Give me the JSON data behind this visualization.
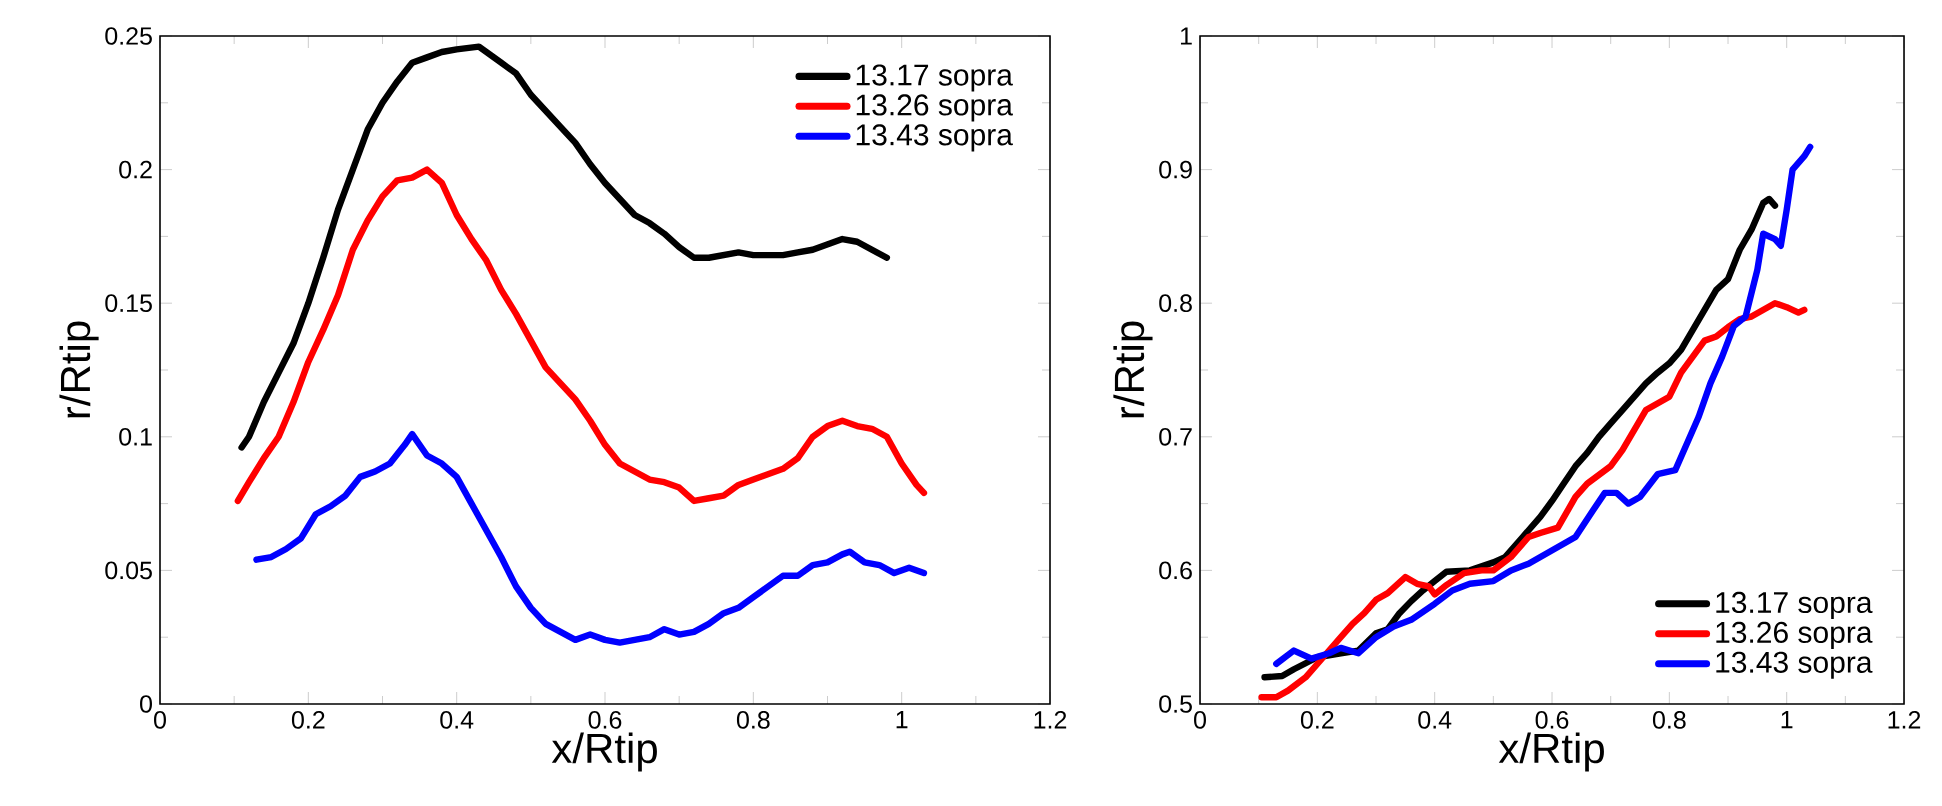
{
  "chart_data": [
    {
      "type": "line",
      "xlabel": "x/Rtip",
      "ylabel": "r/Rtip",
      "xlim": [
        0,
        1.2
      ],
      "ylim": [
        0,
        0.25
      ],
      "xticks": [
        0,
        0.2,
        0.4,
        0.6,
        0.8,
        1,
        1.2
      ],
      "yticks": [
        0,
        0.05,
        0.1,
        0.15,
        0.2,
        0.25
      ],
      "legend": "top right",
      "line_style": "solid",
      "marker": "none",
      "series": [
        {
          "name": "13.17 sopra",
          "color": "#000000",
          "x": [
            0.11,
            0.12,
            0.14,
            0.16,
            0.18,
            0.2,
            0.22,
            0.24,
            0.26,
            0.28,
            0.3,
            0.32,
            0.34,
            0.36,
            0.38,
            0.4,
            0.43,
            0.46,
            0.48,
            0.5,
            0.52,
            0.54,
            0.56,
            0.58,
            0.6,
            0.62,
            0.64,
            0.66,
            0.68,
            0.7,
            0.72,
            0.74,
            0.76,
            0.78,
            0.8,
            0.82,
            0.84,
            0.86,
            0.88,
            0.9,
            0.92,
            0.94,
            0.96,
            0.98
          ],
          "values": [
            0.096,
            0.1,
            0.113,
            0.124,
            0.135,
            0.15,
            0.167,
            0.185,
            0.2,
            0.215,
            0.225,
            0.233,
            0.24,
            0.242,
            0.244,
            0.245,
            0.246,
            0.24,
            0.236,
            0.228,
            0.222,
            0.216,
            0.21,
            0.202,
            0.195,
            0.189,
            0.183,
            0.18,
            0.176,
            0.171,
            0.167,
            0.167,
            0.168,
            0.169,
            0.168,
            0.168,
            0.168,
            0.169,
            0.17,
            0.172,
            0.174,
            0.173,
            0.17,
            0.167
          ]
        },
        {
          "name": "13.26 sopra",
          "color": "#ff0000",
          "x": [
            0.105,
            0.12,
            0.14,
            0.16,
            0.18,
            0.2,
            0.22,
            0.24,
            0.26,
            0.28,
            0.3,
            0.32,
            0.34,
            0.36,
            0.38,
            0.4,
            0.42,
            0.44,
            0.46,
            0.48,
            0.5,
            0.52,
            0.54,
            0.56,
            0.58,
            0.6,
            0.62,
            0.64,
            0.66,
            0.68,
            0.7,
            0.72,
            0.74,
            0.76,
            0.78,
            0.8,
            0.82,
            0.84,
            0.86,
            0.88,
            0.9,
            0.92,
            0.94,
            0.96,
            0.98,
            1.0,
            1.02,
            1.03
          ],
          "values": [
            0.076,
            0.083,
            0.092,
            0.1,
            0.113,
            0.128,
            0.14,
            0.153,
            0.17,
            0.181,
            0.19,
            0.196,
            0.197,
            0.2,
            0.195,
            0.183,
            0.174,
            0.166,
            0.155,
            0.146,
            0.136,
            0.126,
            0.12,
            0.114,
            0.106,
            0.097,
            0.09,
            0.087,
            0.084,
            0.083,
            0.081,
            0.076,
            0.077,
            0.078,
            0.082,
            0.084,
            0.086,
            0.088,
            0.092,
            0.1,
            0.104,
            0.106,
            0.104,
            0.103,
            0.1,
            0.09,
            0.082,
            0.079
          ]
        },
        {
          "name": "13.43 sopra",
          "color": "#0000ff",
          "x": [
            0.13,
            0.15,
            0.17,
            0.19,
            0.21,
            0.23,
            0.25,
            0.27,
            0.29,
            0.31,
            0.33,
            0.34,
            0.36,
            0.38,
            0.4,
            0.42,
            0.44,
            0.46,
            0.48,
            0.5,
            0.52,
            0.54,
            0.56,
            0.58,
            0.6,
            0.62,
            0.64,
            0.66,
            0.68,
            0.7,
            0.72,
            0.74,
            0.76,
            0.78,
            0.8,
            0.82,
            0.84,
            0.86,
            0.88,
            0.9,
            0.92,
            0.93,
            0.95,
            0.97,
            0.99,
            1.01,
            1.03
          ],
          "values": [
            0.054,
            0.055,
            0.058,
            0.062,
            0.071,
            0.074,
            0.078,
            0.085,
            0.087,
            0.09,
            0.097,
            0.101,
            0.093,
            0.09,
            0.085,
            0.075,
            0.065,
            0.055,
            0.044,
            0.036,
            0.03,
            0.027,
            0.024,
            0.026,
            0.024,
            0.023,
            0.024,
            0.025,
            0.028,
            0.026,
            0.027,
            0.03,
            0.034,
            0.036,
            0.04,
            0.044,
            0.048,
            0.048,
            0.052,
            0.053,
            0.056,
            0.057,
            0.053,
            0.052,
            0.049,
            0.051,
            0.049
          ]
        }
      ]
    },
    {
      "type": "line",
      "xlabel": "x/Rtip",
      "ylabel": "r/Rtip",
      "xlim": [
        0,
        1.2
      ],
      "ylim": [
        0.5,
        1
      ],
      "xticks": [
        0,
        0.2,
        0.4,
        0.6,
        0.8,
        1,
        1.2
      ],
      "yticks": [
        0.5,
        0.6,
        0.7,
        0.8,
        0.9,
        1
      ],
      "legend": "bottom right",
      "line_style": "solid",
      "marker": "none",
      "series": [
        {
          "name": "13.17 sopra",
          "color": "#000000",
          "x": [
            0.11,
            0.14,
            0.16,
            0.2,
            0.24,
            0.27,
            0.3,
            0.32,
            0.34,
            0.36,
            0.38,
            0.4,
            0.42,
            0.46,
            0.5,
            0.52,
            0.55,
            0.58,
            0.6,
            0.62,
            0.64,
            0.66,
            0.68,
            0.7,
            0.72,
            0.74,
            0.76,
            0.78,
            0.8,
            0.82,
            0.84,
            0.86,
            0.88,
            0.9,
            0.92,
            0.94,
            0.96,
            0.97,
            0.98
          ],
          "values": [
            0.52,
            0.521,
            0.526,
            0.535,
            0.538,
            0.54,
            0.553,
            0.556,
            0.568,
            0.577,
            0.585,
            0.592,
            0.599,
            0.6,
            0.606,
            0.61,
            0.625,
            0.64,
            0.652,
            0.665,
            0.678,
            0.688,
            0.7,
            0.71,
            0.72,
            0.73,
            0.74,
            0.748,
            0.755,
            0.765,
            0.78,
            0.795,
            0.81,
            0.818,
            0.84,
            0.855,
            0.875,
            0.878,
            0.873
          ]
        },
        {
          "name": "13.26 sopra",
          "color": "#ff0000",
          "x": [
            0.105,
            0.13,
            0.15,
            0.18,
            0.21,
            0.24,
            0.26,
            0.28,
            0.3,
            0.32,
            0.35,
            0.37,
            0.39,
            0.4,
            0.42,
            0.45,
            0.48,
            0.5,
            0.53,
            0.56,
            0.58,
            0.61,
            0.64,
            0.66,
            0.7,
            0.72,
            0.74,
            0.76,
            0.78,
            0.8,
            0.82,
            0.84,
            0.86,
            0.88,
            0.9,
            0.92,
            0.94,
            0.96,
            0.98,
            1.0,
            1.02,
            1.03
          ],
          "values": [
            0.505,
            0.505,
            0.51,
            0.52,
            0.535,
            0.55,
            0.56,
            0.568,
            0.578,
            0.583,
            0.595,
            0.59,
            0.588,
            0.582,
            0.589,
            0.598,
            0.6,
            0.6,
            0.61,
            0.625,
            0.628,
            0.632,
            0.655,
            0.665,
            0.678,
            0.69,
            0.705,
            0.72,
            0.725,
            0.73,
            0.748,
            0.76,
            0.772,
            0.775,
            0.782,
            0.788,
            0.79,
            0.795,
            0.8,
            0.797,
            0.793,
            0.795
          ]
        },
        {
          "name": "13.43 sopra",
          "color": "#0000ff",
          "x": [
            0.13,
            0.16,
            0.19,
            0.22,
            0.24,
            0.27,
            0.3,
            0.33,
            0.36,
            0.4,
            0.43,
            0.46,
            0.5,
            0.53,
            0.56,
            0.6,
            0.64,
            0.67,
            0.69,
            0.71,
            0.73,
            0.75,
            0.78,
            0.81,
            0.83,
            0.85,
            0.87,
            0.89,
            0.91,
            0.93,
            0.95,
            0.96,
            0.98,
            0.99,
            1.0,
            1.01,
            1.03,
            1.04
          ],
          "values": [
            0.53,
            0.54,
            0.534,
            0.538,
            0.542,
            0.538,
            0.55,
            0.558,
            0.563,
            0.575,
            0.585,
            0.59,
            0.592,
            0.6,
            0.605,
            0.615,
            0.625,
            0.645,
            0.658,
            0.658,
            0.65,
            0.655,
            0.672,
            0.675,
            0.695,
            0.715,
            0.74,
            0.76,
            0.783,
            0.79,
            0.825,
            0.852,
            0.848,
            0.843,
            0.87,
            0.9,
            0.91,
            0.917
          ]
        }
      ]
    }
  ]
}
